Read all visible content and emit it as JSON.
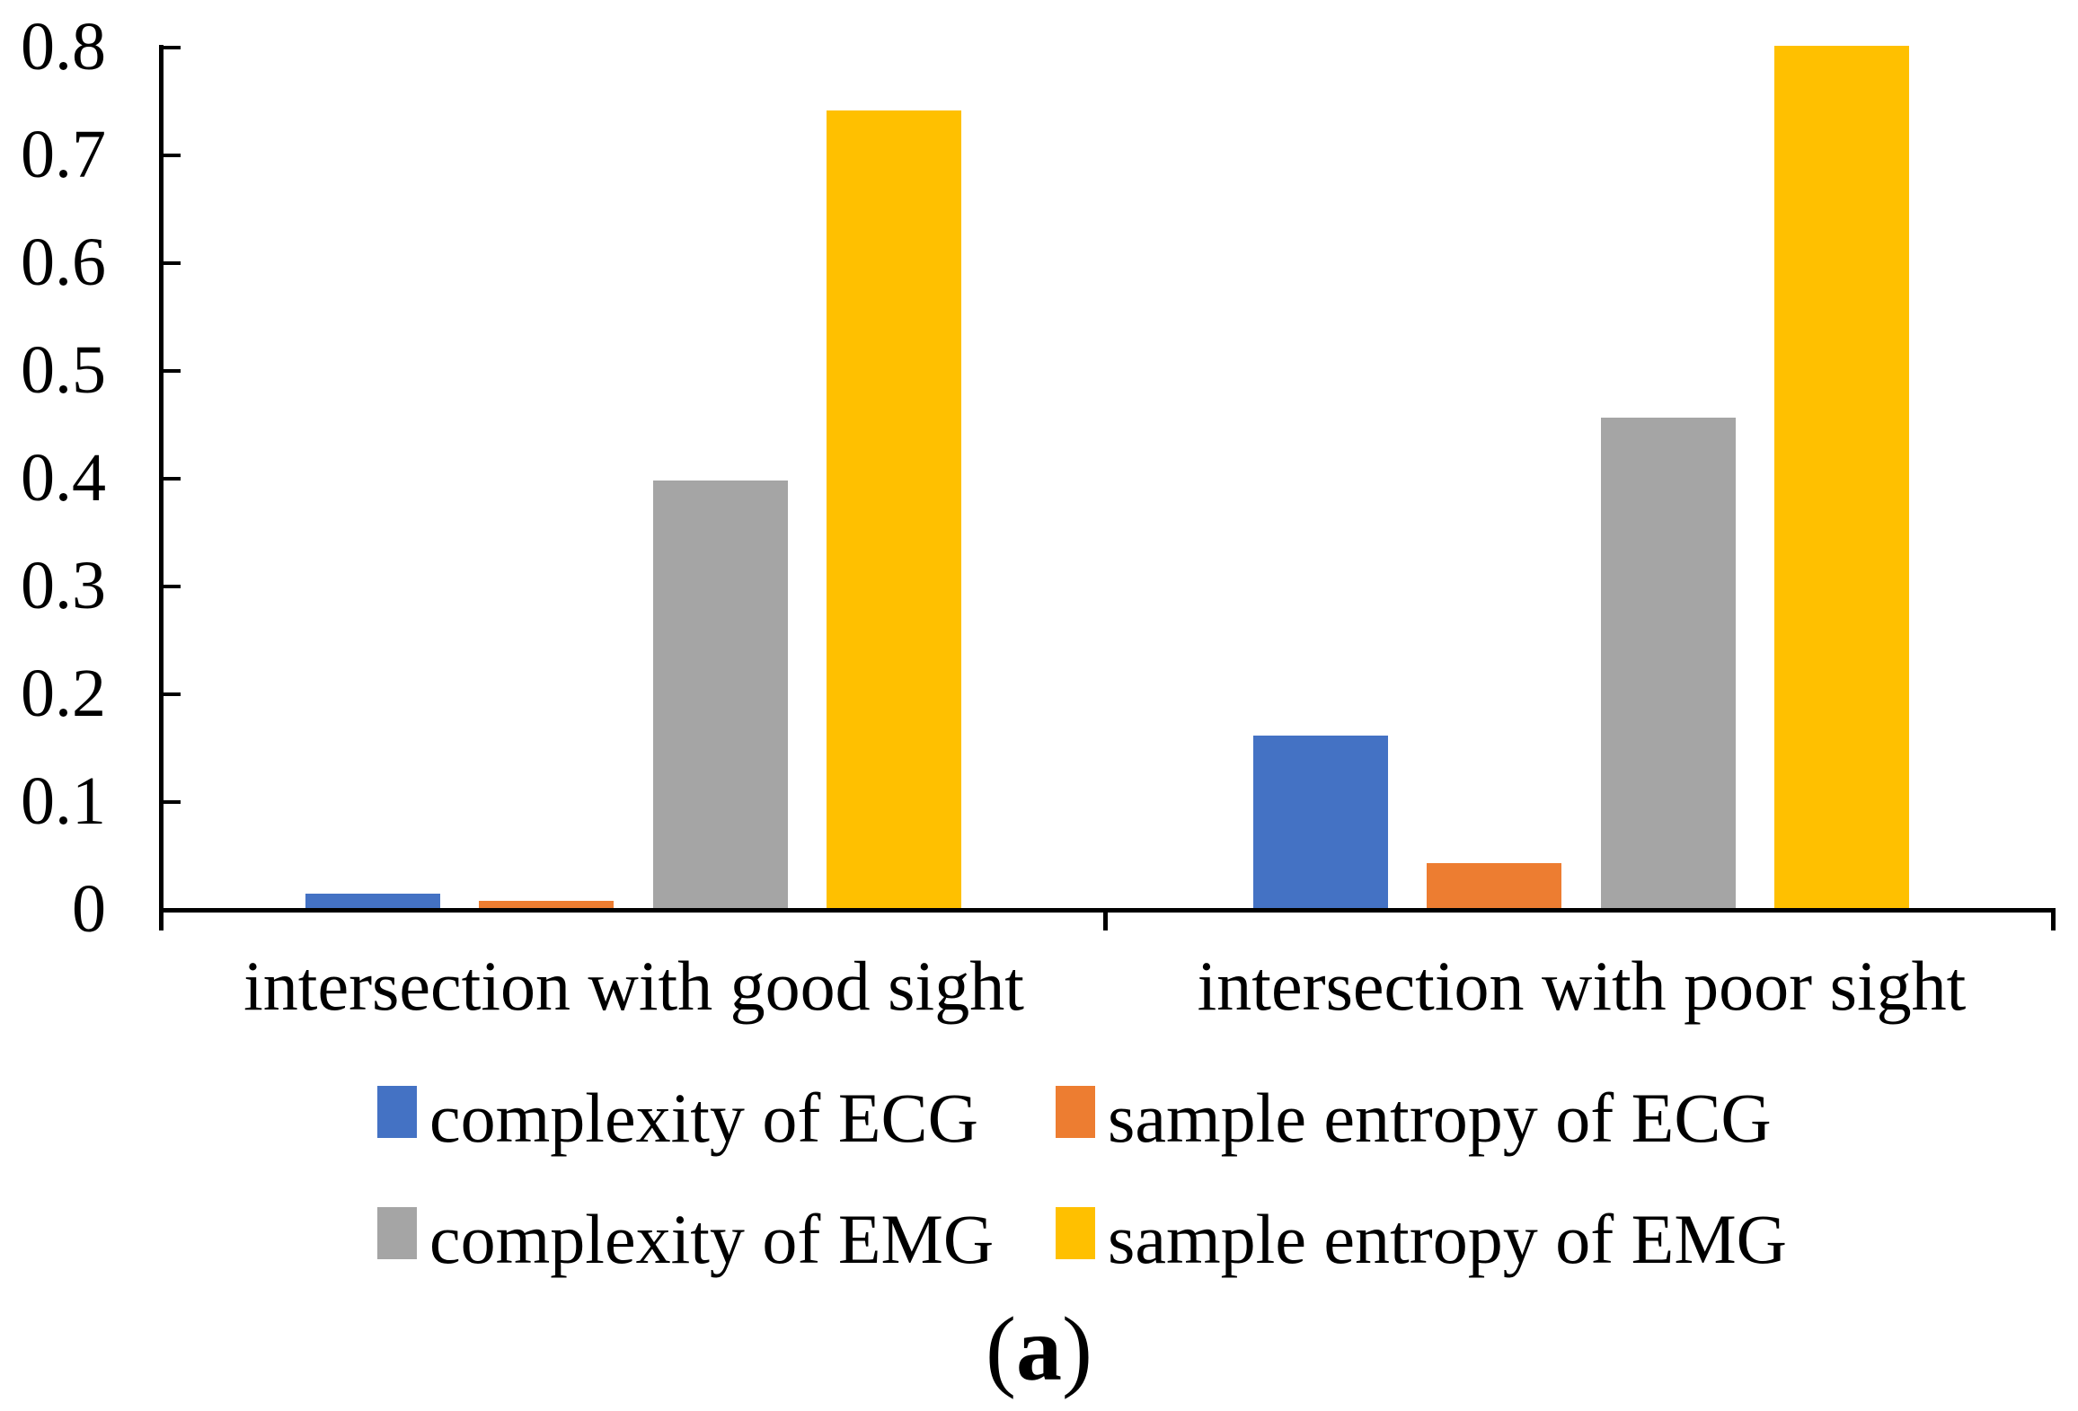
{
  "chart_data": {
    "type": "bar",
    "title": "",
    "xlabel": "",
    "ylabel": "",
    "categories": [
      "intersection with good sight",
      "intersection with poor sight"
    ],
    "series": [
      {
        "name": "complexity of ECG",
        "color": "#4472C4",
        "values": [
          0.013,
          0.16
        ]
      },
      {
        "name": "sample entropy of ECG",
        "color": "#ED7D31",
        "values": [
          0.007,
          0.042
        ]
      },
      {
        "name": "complexity of EMG",
        "color": "#A5A5A5",
        "values": [
          0.397,
          0.455
        ]
      },
      {
        "name": "sample entropy of EMG",
        "color": "#FFC000",
        "values": [
          0.74,
          0.8
        ]
      }
    ],
    "ylim": [
      0,
      0.8
    ],
    "ytick_step": 0.1,
    "ytick_labels": [
      "0",
      "0.1",
      "0.2",
      "0.3",
      "0.4",
      "0.5",
      "0.6",
      "0.7",
      "0.8"
    ],
    "grid": false,
    "legend_position": "bottom",
    "axis_color": "#000000"
  },
  "caption": {
    "open": "(",
    "letter": "a",
    "close": ")"
  }
}
